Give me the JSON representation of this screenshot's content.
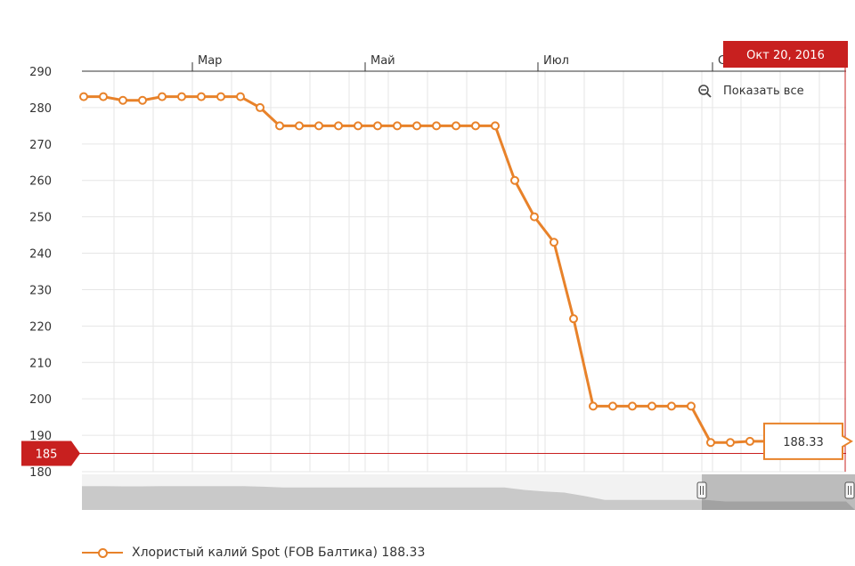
{
  "chart_data": {
    "type": "line",
    "series": [
      {
        "name": "Хлористый калий Spot (FOB Балтика)",
        "values": [
          283,
          283,
          282,
          282,
          283,
          283,
          283,
          283,
          283,
          280,
          275,
          275,
          275,
          275,
          275,
          275,
          275,
          275,
          275,
          275,
          275,
          275,
          260,
          250,
          243,
          222,
          198,
          198,
          198,
          198,
          198,
          198,
          188,
          188,
          188.33,
          188.33,
          188.33,
          188.33,
          188.33
        ]
      }
    ],
    "x_ticks": [
      "Мар",
      "Май",
      "Июл",
      "С"
    ],
    "y_ticks": [
      "290",
      "280",
      "270",
      "260",
      "250",
      "240",
      "230",
      "220",
      "210",
      "200",
      "190",
      "180"
    ],
    "ylim": [
      180,
      290
    ],
    "grid": true,
    "last_value": "188.33",
    "crosshair": {
      "x_label": "Окт 20, 2016",
      "y_label": "185",
      "y_value": 185
    },
    "legend_text": "Хлористый калий Spot (FOB Балтика) 188.33",
    "legend_position": "bottom-left"
  },
  "controls": {
    "reset_zoom_label": "Показать все"
  },
  "colors": {
    "series": "#e8822a",
    "crosshair": "#c8201f",
    "navigator": "#999999",
    "label_bg": "#ffffff"
  }
}
